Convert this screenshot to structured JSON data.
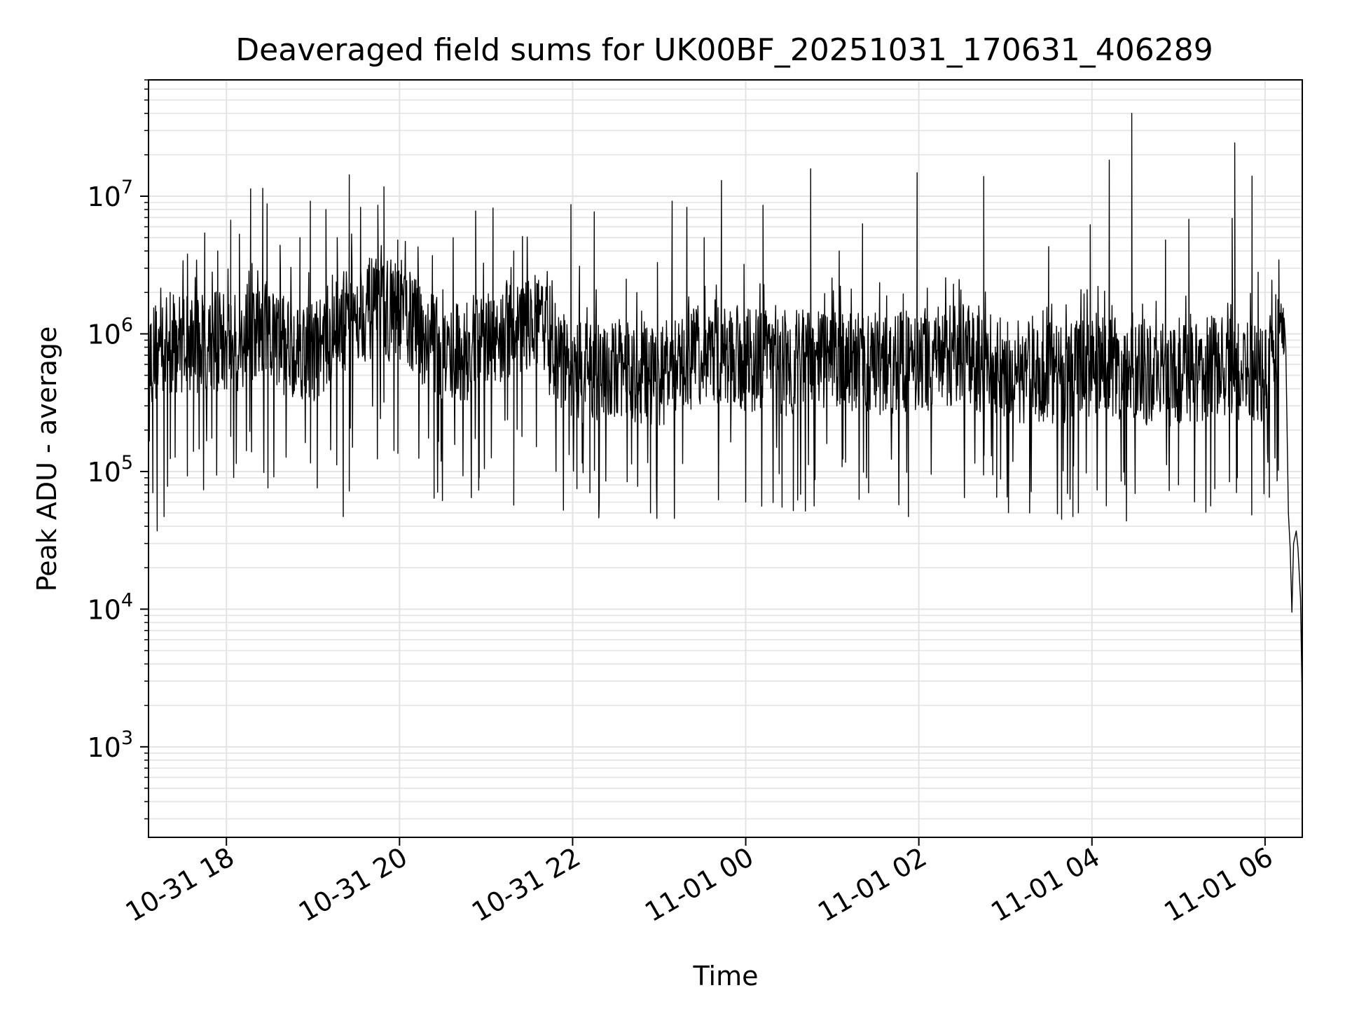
{
  "chart_data": {
    "type": "line",
    "title": "Deaveraged field sums for UK00BF_20251031_170631_406289",
    "xlabel": "Time",
    "ylabel": "Peak ADU - average",
    "yscale": "log",
    "ylim": [
      220,
      70000000
    ],
    "xlim_hours": [
      17.1,
      30.43
    ],
    "grid": true,
    "line_color": "#000000",
    "grid_color": "#e3e3e3",
    "x_ticks": [
      {
        "hour": 18,
        "label": "10-31 18"
      },
      {
        "hour": 20,
        "label": "10-31 20"
      },
      {
        "hour": 22,
        "label": "10-31 22"
      },
      {
        "hour": 24,
        "label": "11-01 00"
      },
      {
        "hour": 26,
        "label": "11-01 02"
      },
      {
        "hour": 28,
        "label": "11-01 04"
      },
      {
        "hour": 30,
        "label": "11-01 06"
      }
    ],
    "y_ticks": [
      {
        "value": 1000,
        "base": "10",
        "exp": "3"
      },
      {
        "value": 10000,
        "base": "10",
        "exp": "4"
      },
      {
        "value": 100000,
        "base": "10",
        "exp": "5"
      },
      {
        "value": 1000000,
        "base": "10",
        "exp": "6"
      },
      {
        "value": 10000000,
        "base": "10",
        "exp": "7"
      }
    ],
    "series": [
      {
        "name": "Peak ADU - average",
        "baseline": [
          [
            17.1,
            700000
          ],
          [
            17.5,
            900000
          ],
          [
            18.0,
            850000
          ],
          [
            18.5,
            900000
          ],
          [
            19.0,
            750000
          ],
          [
            19.5,
            1500000
          ],
          [
            20.0,
            1500000
          ],
          [
            20.5,
            700000
          ],
          [
            21.0,
            850000
          ],
          [
            21.5,
            1300000
          ],
          [
            22.0,
            500000
          ],
          [
            22.5,
            550000
          ],
          [
            23.0,
            500000
          ],
          [
            23.5,
            700000
          ],
          [
            24.0,
            650000
          ],
          [
            24.5,
            600000
          ],
          [
            25.0,
            650000
          ],
          [
            25.5,
            600000
          ],
          [
            26.0,
            650000
          ],
          [
            26.5,
            700000
          ],
          [
            27.0,
            550000
          ],
          [
            27.5,
            500000
          ],
          [
            28.0,
            600000
          ],
          [
            28.5,
            500000
          ],
          [
            29.0,
            500000
          ],
          [
            29.5,
            600000
          ],
          [
            30.0,
            500000
          ],
          [
            30.2,
            1100000
          ]
        ],
        "spikes": [
          [
            17.35,
            2000000
          ],
          [
            17.55,
            3800000
          ],
          [
            17.75,
            5400000
          ],
          [
            17.9,
            4000000
          ],
          [
            18.05,
            6700000
          ],
          [
            18.15,
            5300000
          ],
          [
            18.28,
            11300000
          ],
          [
            18.42,
            11400000
          ],
          [
            18.47,
            8800000
          ],
          [
            18.62,
            4400000
          ],
          [
            18.85,
            5000000
          ],
          [
            18.97,
            9200000
          ],
          [
            19.15,
            8000000
          ],
          [
            19.28,
            5000000
          ],
          [
            19.42,
            14300000
          ],
          [
            19.55,
            8300000
          ],
          [
            19.75,
            8600000
          ],
          [
            19.82,
            11700000
          ],
          [
            19.98,
            4800000
          ],
          [
            20.12,
            2800000
          ],
          [
            20.38,
            3700000
          ],
          [
            20.62,
            5000000
          ],
          [
            20.88,
            7800000
          ],
          [
            21.08,
            8200000
          ],
          [
            21.32,
            4000000
          ],
          [
            21.42,
            5100000
          ],
          [
            21.98,
            8700000
          ],
          [
            22.08,
            3100000
          ],
          [
            22.25,
            7700000
          ],
          [
            22.62,
            2500000
          ],
          [
            22.98,
            3300000
          ],
          [
            23.15,
            9200000
          ],
          [
            23.32,
            8300000
          ],
          [
            23.52,
            5000000
          ],
          [
            23.72,
            13000000
          ],
          [
            23.98,
            3200000
          ],
          [
            24.2,
            8600000
          ],
          [
            24.75,
            15800000
          ],
          [
            25.08,
            4000000
          ],
          [
            25.35,
            6300000
          ],
          [
            25.98,
            14800000
          ],
          [
            26.75,
            13900000
          ],
          [
            27.5,
            4300000
          ],
          [
            27.98,
            6200000
          ],
          [
            28.2,
            18300000
          ],
          [
            28.46,
            40000000
          ],
          [
            28.85,
            4800000
          ],
          [
            29.12,
            6800000
          ],
          [
            29.62,
            6900000
          ],
          [
            29.65,
            24400000
          ],
          [
            29.85,
            14000000
          ],
          [
            29.92,
            2800000
          ]
        ],
        "dips": [
          [
            17.15,
            70000
          ],
          [
            17.2,
            37000
          ],
          [
            17.28,
            47000
          ],
          [
            17.32,
            78000
          ],
          [
            17.62,
            140000
          ],
          [
            18.05,
            180000
          ],
          [
            18.48,
            76000
          ],
          [
            19.05,
            76000
          ],
          [
            19.35,
            47000
          ],
          [
            19.42,
            72000
          ],
          [
            20.4,
            64000
          ],
          [
            20.92,
            90000
          ],
          [
            21.32,
            57000
          ],
          [
            22.05,
            75000
          ],
          [
            22.2,
            70000
          ],
          [
            22.9,
            50000
          ],
          [
            24.0,
            60000
          ],
          [
            24.42,
            55000
          ],
          [
            24.55,
            52000
          ],
          [
            24.6,
            62000
          ],
          [
            25.42,
            70000
          ],
          [
            25.88,
            47000
          ],
          [
            26.9,
            65000
          ],
          [
            27.28,
            50000
          ],
          [
            27.65,
            45000
          ],
          [
            27.78,
            47000
          ],
          [
            28.38,
            80000
          ],
          [
            29.0,
            80000
          ],
          [
            29.42,
            75000
          ],
          [
            29.68,
            90000
          ],
          [
            30.05,
            65000
          ]
        ],
        "tail": [
          [
            30.22,
            1300000
          ],
          [
            30.24,
            800000
          ],
          [
            30.27,
            50000
          ],
          [
            30.29,
            28000
          ],
          [
            30.31,
            9500
          ],
          [
            30.33,
            30000
          ],
          [
            30.36,
            37000
          ],
          [
            30.38,
            28000
          ],
          [
            30.41,
            12000
          ],
          [
            30.425,
            3000
          ],
          [
            30.43,
            1000
          ]
        ]
      }
    ]
  }
}
